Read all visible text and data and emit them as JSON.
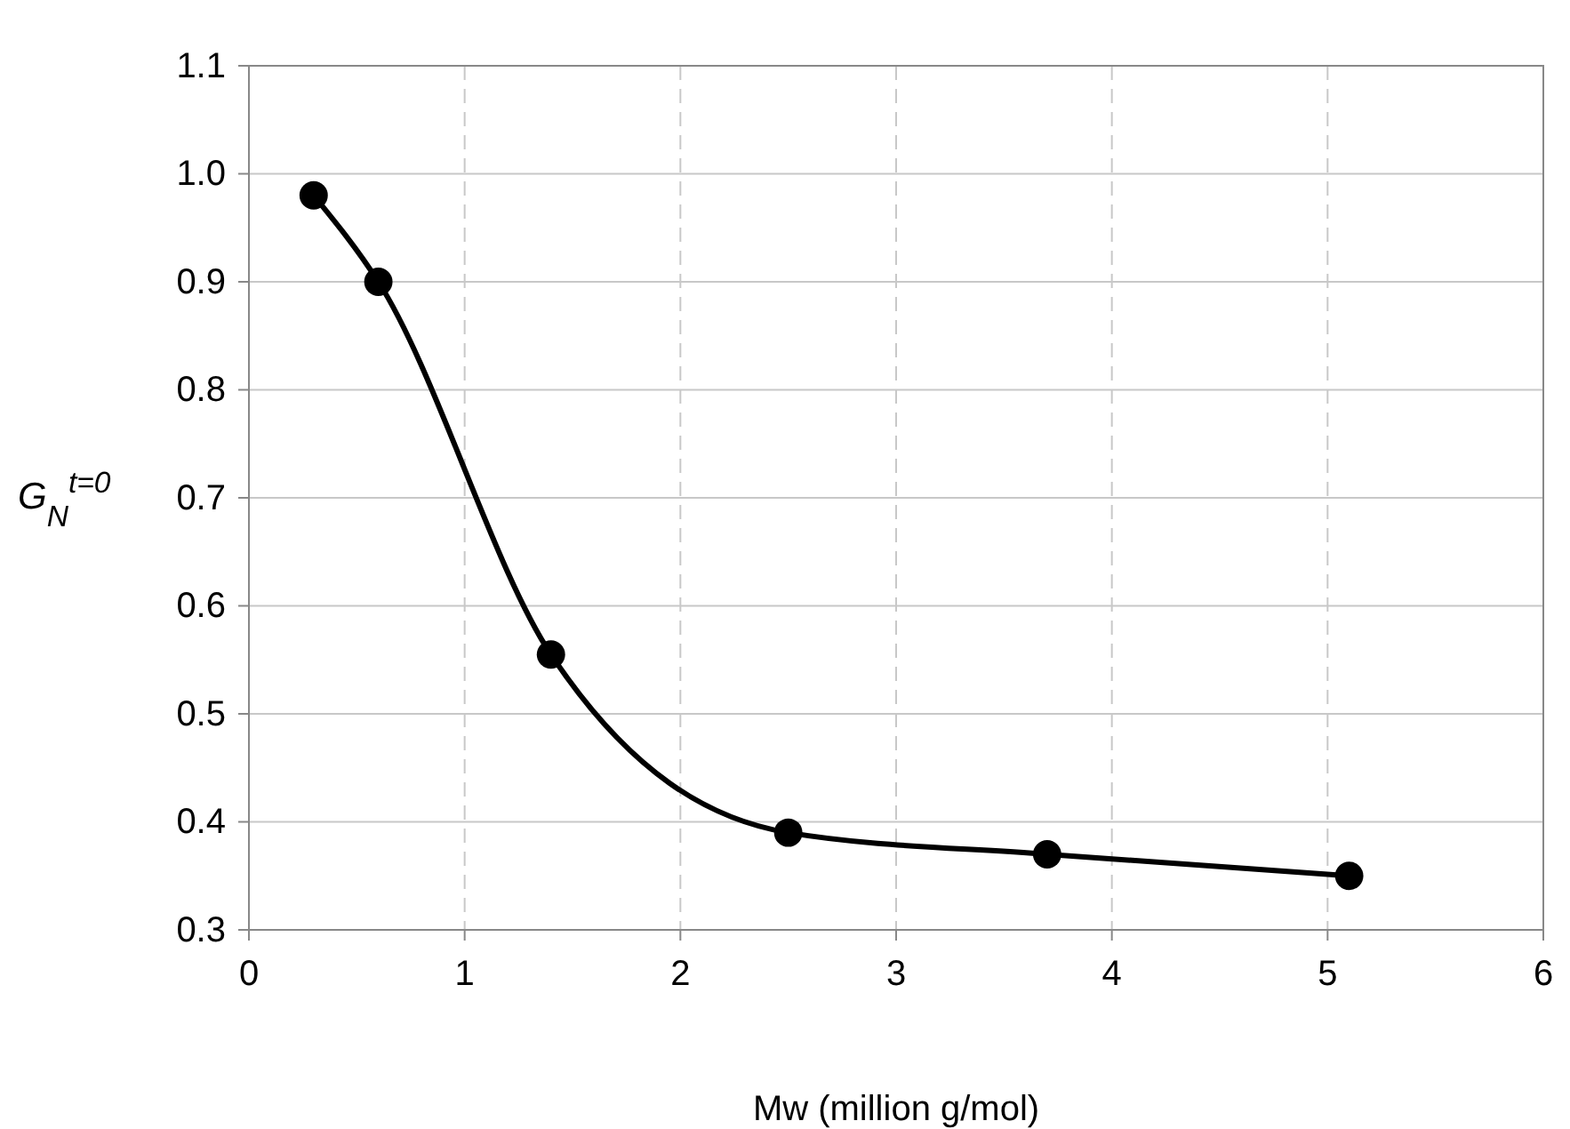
{
  "chart_data": {
    "type": "line",
    "xlabel": "Mw (million g/mol)",
    "ylabel": "G$_{N}$$^{t=0}$",
    "x": [
      0.3,
      0.6,
      1.4,
      2.5,
      3.7,
      5.1
    ],
    "series": [
      {
        "color": "#000000",
        "values": [
          0.98,
          0.9,
          0.555,
          0.39,
          0.37,
          0.35
        ]
      }
    ],
    "xlim": [
      0,
      6
    ],
    "xticks": [
      0,
      1,
      2,
      3,
      4,
      5,
      6
    ],
    "ylim": [
      0.3,
      1.1
    ],
    "yticks": [
      {
        "value": 0.3,
        "label": "0.3"
      },
      {
        "value": 0.4,
        "label": "0.4"
      },
      {
        "value": 0.5,
        "label": "0.5"
      },
      {
        "value": 0.6,
        "label": "0.6"
      },
      {
        "value": 0.7,
        "label": "0.7"
      },
      {
        "value": 0.8,
        "label": "0.8"
      },
      {
        "value": 0.9,
        "label": "0.9"
      },
      {
        "value": 1.0,
        "label": "1.0"
      },
      {
        "value": 1.1,
        "label": "1.1"
      }
    ],
    "grid": true,
    "marker": "circle",
    "line_style": "solid"
  }
}
